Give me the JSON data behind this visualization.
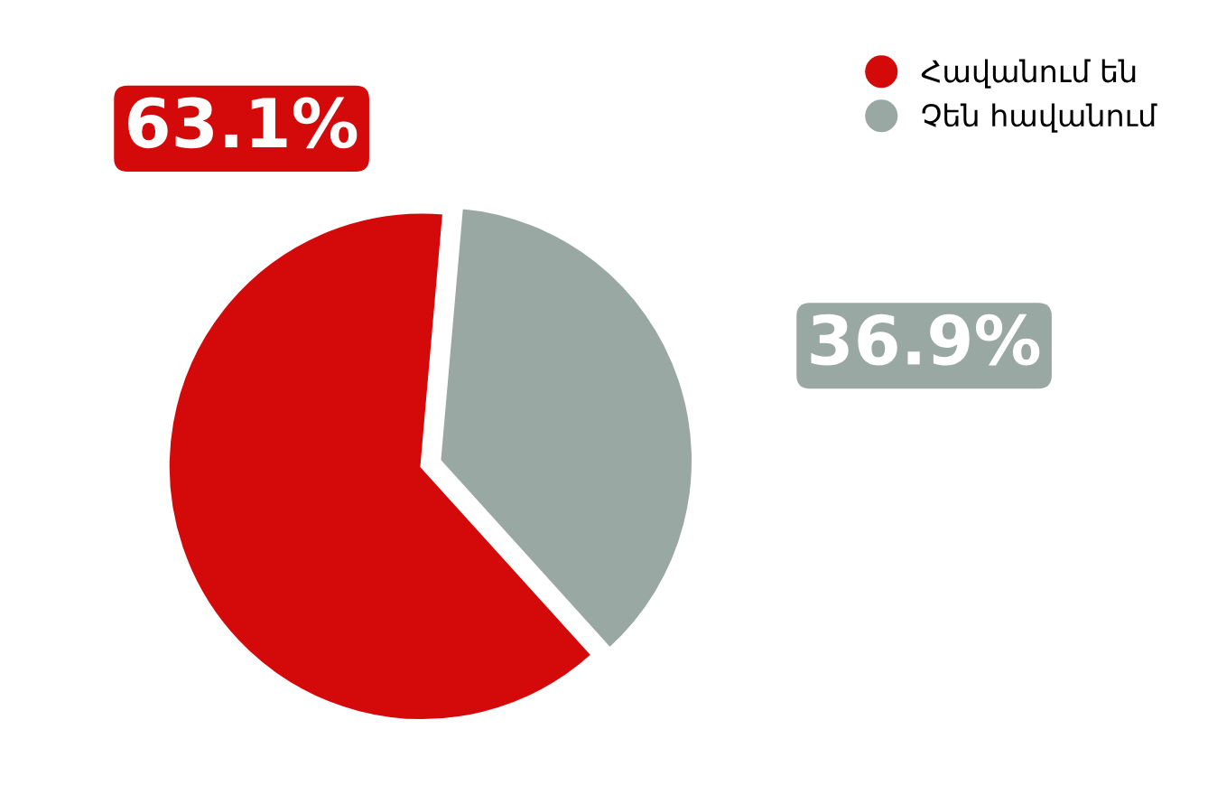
{
  "chart_data": {
    "type": "pie",
    "categories": [
      "Հավանում են",
      "Չեն հավանում"
    ],
    "values": [
      63.1,
      36.9
    ],
    "colors": [
      "#d40a0a",
      "#9aa8a4"
    ],
    "value_labels": [
      "63.1%",
      "36.9%"
    ],
    "legend": "top right"
  }
}
